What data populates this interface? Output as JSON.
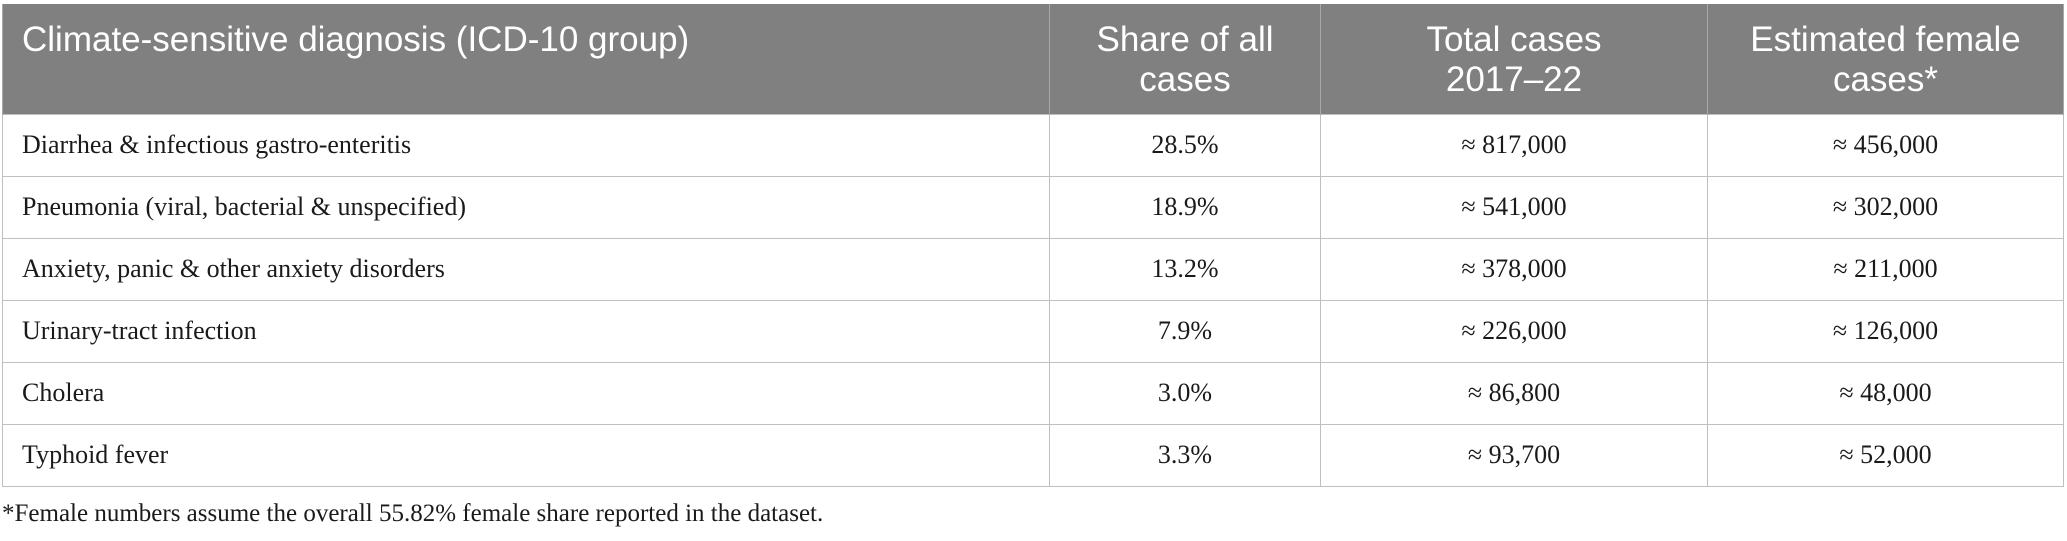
{
  "table": {
    "headers": [
      [
        "Climate-sensitive diagnosis (ICD-10 group)"
      ],
      [
        "Share of all",
        "cases"
      ],
      [
        "Total cases",
        "2017–22"
      ],
      [
        "Estimated female",
        "cases*"
      ]
    ],
    "rows": [
      [
        "Diarrhea & infectious gastro-enteritis",
        "28.5%",
        "≈ 817,000",
        "≈ 456,000"
      ],
      [
        "Pneumonia (viral, bacterial & unspecified)",
        "18.9%",
        "≈ 541,000",
        "≈ 302,000"
      ],
      [
        "Anxiety, panic & other anxiety disorders",
        "13.2%",
        "≈ 378,000",
        "≈ 211,000"
      ],
      [
        "Urinary-tract infection",
        "7.9%",
        "≈ 226,000",
        "≈ 126,000"
      ],
      [
        "Cholera",
        "3.0%",
        "≈ 86,800",
        "≈ 48,000"
      ],
      [
        "Typhoid fever",
        "3.3%",
        "≈ 93,700",
        "≈ 52,000"
      ]
    ]
  },
  "footnote": "*Female numbers assume the overall 55.82% female share reported in the dataset."
}
